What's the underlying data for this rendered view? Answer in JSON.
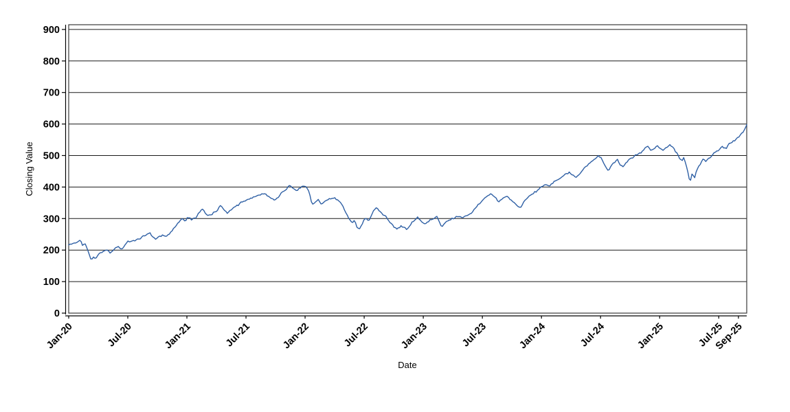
{
  "figure": {
    "title": "",
    "x_axis_label": "Date",
    "y_axis_label": "Closing Value",
    "background_color": "#ffffff"
  },
  "chart_data": {
    "type": "line",
    "title": "",
    "xlabel": "Date",
    "ylabel": "Closing Value",
    "legend": "none",
    "grid": "horizontal solid black gridlines at every 100 units",
    "ylim": [
      0,
      900
    ],
    "y_ticks": [
      0,
      100,
      200,
      300,
      400,
      500,
      600,
      700,
      800,
      900
    ],
    "x_unit": "months since Jan-2020",
    "xlim_months": [
      0,
      68.84
    ],
    "x_tick_months": [
      0,
      6,
      12,
      18,
      24,
      30,
      36,
      42,
      48,
      54,
      60,
      66,
      68
    ],
    "x_tick_labels": [
      "Jan-20",
      "Jul-20",
      "Jan-21",
      "Jul-21",
      "Jan-22",
      "Jul-22",
      "Jan-23",
      "Jul-23",
      "Jan-24",
      "Jul-24",
      "Jan-25",
      "Jul-25",
      "Sep-25"
    ],
    "series": [
      {
        "name": "Closing Value",
        "color": "#2e5fa4",
        "points": [
          [
            0,
            216
          ],
          [
            0.3,
            219
          ],
          [
            0.7,
            223
          ],
          [
            1.0,
            228
          ],
          [
            1.2,
            233
          ],
          [
            1.45,
            214
          ],
          [
            1.65,
            223
          ],
          [
            1.9,
            200
          ],
          [
            2.1,
            182
          ],
          [
            2.3,
            167
          ],
          [
            2.5,
            179
          ],
          [
            2.75,
            173
          ],
          [
            3.1,
            190
          ],
          [
            3.5,
            196
          ],
          [
            3.9,
            199
          ],
          [
            4.3,
            192
          ],
          [
            4.7,
            205
          ],
          [
            5.0,
            211
          ],
          [
            5.3,
            203
          ],
          [
            5.65,
            212
          ],
          [
            6.0,
            226
          ],
          [
            6.4,
            228
          ],
          [
            6.8,
            231
          ],
          [
            7.2,
            236
          ],
          [
            7.6,
            244
          ],
          [
            8.0,
            252
          ],
          [
            8.2,
            257
          ],
          [
            8.5,
            240
          ],
          [
            8.8,
            236
          ],
          [
            9.1,
            241
          ],
          [
            9.5,
            247
          ],
          [
            9.8,
            242
          ],
          [
            10.2,
            251
          ],
          [
            10.6,
            266
          ],
          [
            11.0,
            280
          ],
          [
            11.35,
            295
          ],
          [
            11.6,
            300
          ],
          [
            11.85,
            291
          ],
          [
            12.1,
            303
          ],
          [
            12.5,
            298
          ],
          [
            12.9,
            303
          ],
          [
            13.2,
            316
          ],
          [
            13.55,
            331
          ],
          [
            13.9,
            316
          ],
          [
            14.2,
            311
          ],
          [
            14.6,
            316
          ],
          [
            15.0,
            322
          ],
          [
            15.4,
            344
          ],
          [
            15.7,
            331
          ],
          [
            16.1,
            318
          ],
          [
            16.5,
            330
          ],
          [
            17.0,
            339
          ],
          [
            17.5,
            351
          ],
          [
            18.0,
            358
          ],
          [
            18.6,
            366
          ],
          [
            19.2,
            372
          ],
          [
            19.6,
            380
          ],
          [
            20.0,
            376
          ],
          [
            20.4,
            369
          ],
          [
            20.9,
            358
          ],
          [
            21.3,
            369
          ],
          [
            21.7,
            383
          ],
          [
            22.1,
            394
          ],
          [
            22.4,
            405
          ],
          [
            22.8,
            396
          ],
          [
            23.15,
            389
          ],
          [
            23.5,
            397
          ],
          [
            23.85,
            403
          ],
          [
            24.15,
            400
          ],
          [
            24.45,
            382
          ],
          [
            24.7,
            345
          ],
          [
            25.0,
            353
          ],
          [
            25.35,
            361
          ],
          [
            25.6,
            344
          ],
          [
            26.0,
            356
          ],
          [
            26.4,
            362
          ],
          [
            26.85,
            368
          ],
          [
            27.3,
            357
          ],
          [
            27.7,
            349
          ],
          [
            28.1,
            320
          ],
          [
            28.5,
            301
          ],
          [
            28.8,
            287
          ],
          [
            29.0,
            297
          ],
          [
            29.3,
            272
          ],
          [
            29.55,
            268
          ],
          [
            29.8,
            283
          ],
          [
            30.1,
            300
          ],
          [
            30.5,
            295
          ],
          [
            30.9,
            321
          ],
          [
            31.25,
            335
          ],
          [
            31.65,
            320
          ],
          [
            32.1,
            310
          ],
          [
            32.6,
            289
          ],
          [
            33.0,
            276
          ],
          [
            33.4,
            265
          ],
          [
            33.7,
            277
          ],
          [
            34.1,
            270
          ],
          [
            34.35,
            264
          ],
          [
            34.75,
            282
          ],
          [
            35.1,
            295
          ],
          [
            35.45,
            304
          ],
          [
            35.85,
            288
          ],
          [
            36.2,
            283
          ],
          [
            36.6,
            293
          ],
          [
            37.0,
            300
          ],
          [
            37.4,
            307
          ],
          [
            37.85,
            272
          ],
          [
            38.2,
            286
          ],
          [
            38.6,
            297
          ],
          [
            39.0,
            300
          ],
          [
            39.5,
            305
          ],
          [
            40.0,
            303
          ],
          [
            40.5,
            310
          ],
          [
            41.0,
            322
          ],
          [
            41.5,
            341
          ],
          [
            42.0,
            357
          ],
          [
            42.5,
            370
          ],
          [
            42.85,
            377
          ],
          [
            43.3,
            366
          ],
          [
            43.7,
            352
          ],
          [
            44.1,
            364
          ],
          [
            44.5,
            371
          ],
          [
            45.0,
            355
          ],
          [
            45.5,
            342
          ],
          [
            45.85,
            334
          ],
          [
            46.3,
            356
          ],
          [
            46.7,
            370
          ],
          [
            47.1,
            378
          ],
          [
            47.6,
            390
          ],
          [
            48.0,
            400
          ],
          [
            48.4,
            408
          ],
          [
            48.8,
            404
          ],
          [
            49.2,
            415
          ],
          [
            49.6,
            421
          ],
          [
            50.0,
            430
          ],
          [
            50.4,
            440
          ],
          [
            50.8,
            446
          ],
          [
            51.1,
            438
          ],
          [
            51.5,
            430
          ],
          [
            51.9,
            442
          ],
          [
            52.3,
            461
          ],
          [
            52.7,
            470
          ],
          [
            53.1,
            480
          ],
          [
            53.5,
            492
          ],
          [
            53.8,
            499
          ],
          [
            54.1,
            489
          ],
          [
            54.45,
            470
          ],
          [
            54.8,
            452
          ],
          [
            55.1,
            470
          ],
          [
            55.4,
            478
          ],
          [
            55.7,
            486
          ],
          [
            56.0,
            470
          ],
          [
            56.3,
            461
          ],
          [
            56.6,
            478
          ],
          [
            57.0,
            488
          ],
          [
            57.4,
            496
          ],
          [
            57.8,
            506
          ],
          [
            58.2,
            512
          ],
          [
            58.5,
            524
          ],
          [
            58.8,
            530
          ],
          [
            59.1,
            516
          ],
          [
            59.4,
            522
          ],
          [
            59.7,
            530
          ],
          [
            60.0,
            525
          ],
          [
            60.3,
            515
          ],
          [
            60.7,
            528
          ],
          [
            61.0,
            534
          ],
          [
            61.3,
            526
          ],
          [
            61.6,
            513
          ],
          [
            61.9,
            500
          ],
          [
            62.2,
            483
          ],
          [
            62.5,
            492
          ],
          [
            62.8,
            460
          ],
          [
            63.05,
            414
          ],
          [
            63.3,
            443
          ],
          [
            63.55,
            430
          ],
          [
            63.8,
            455
          ],
          [
            64.1,
            472
          ],
          [
            64.4,
            489
          ],
          [
            64.7,
            482
          ],
          [
            65.0,
            492
          ],
          [
            65.3,
            500
          ],
          [
            65.7,
            511
          ],
          [
            66.0,
            518
          ],
          [
            66.4,
            528
          ],
          [
            66.7,
            522
          ],
          [
            67.0,
            536
          ],
          [
            67.4,
            545
          ],
          [
            67.8,
            553
          ],
          [
            68.1,
            562
          ],
          [
            68.4,
            572
          ],
          [
            68.6,
            581
          ],
          [
            68.84,
            598
          ]
        ]
      }
    ],
    "style": {
      "line_color": "#2e5fa4",
      "gridline_color": "#1a1a1a",
      "frame_color": "#3a3a3a",
      "axis_line_color": "#000000",
      "tick_label_color": "#000000",
      "x_tick_label_rotation_deg": -45
    }
  }
}
